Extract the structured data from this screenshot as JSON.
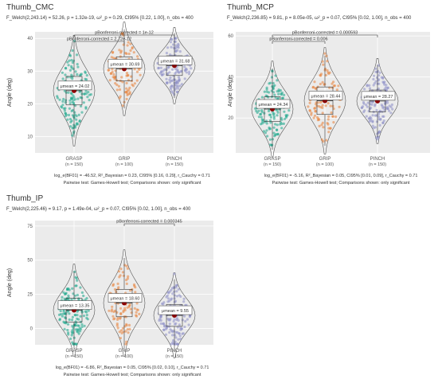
{
  "chart_data": [
    {
      "type": "violin",
      "title": "Thumb_CMC",
      "subtitle": "F_Welch(2,243.14) = 52.26, p = 1.32e-19, ω²_p = 0.29, CI95% [0.22, 1.00], n_obs = 400",
      "ylabel": "Angle (deg)",
      "ylim": [
        5,
        42
      ],
      "yticks": [
        "10",
        "20",
        "30",
        "40"
      ],
      "categories": [
        "GRASP",
        "GRIP",
        "PINCH"
      ],
      "ns": [
        "(n = 150)",
        "(n = 100)",
        "(n = 150)"
      ],
      "series": [
        {
          "values": [
            24.02,
            30.69,
            31.68
          ]
        }
      ],
      "mean_labels": [
        "μmean = 24.02",
        "μmean = 30.69",
        "μmean = 31.68"
      ],
      "comparisons": [
        {
          "from": 0,
          "to": 2,
          "label": "pBonferroni-corrected = 1e-12"
        },
        {
          "from": 0,
          "to": 1,
          "label": "pBonferroni-corrected = 2.72e-12"
        }
      ],
      "footer_bayes": "log_e(BF01) = -46.52, R²_Bayesian = 0.23, CI95% [0.16, 0.29], r_Cauchy = 0.71",
      "footer_test": "Pairwise test: Games-Howell test; Comparisons shown: only significant"
    },
    {
      "type": "violin",
      "title": "Thumb_MCP",
      "subtitle": "F_Welch(2,236.85) = 9.81, p = 8.05e-05, ω²_p = 0.07, CI95% [0.02, 1.00], n_obs = 400",
      "ylabel": "Angle (deg)",
      "ylim": [
        3,
        62
      ],
      "yticks": [
        "20",
        "40",
        "60"
      ],
      "categories": [
        "GRASP",
        "GRIP",
        "PINCH"
      ],
      "ns": [
        "(n = 150)",
        "(n = 100)",
        "(n = 150)"
      ],
      "series": [
        {
          "values": [
            24.34,
            28.44,
            28.27
          ]
        }
      ],
      "mean_labels": [
        "μmean = 24.34",
        "μmean = 28.44",
        "μmean = 28.27"
      ],
      "comparisons": [
        {
          "from": 0,
          "to": 2,
          "label": "pBonferroni-corrected = 0.000593"
        },
        {
          "from": 0,
          "to": 1,
          "label": "pBonferroni-corrected = 0.006"
        }
      ],
      "footer_bayes": "log_e(BF01) = -5.16, R²_Bayesian = 0.05, CI95% [0.01, 0.09], r_Cauchy = 0.71",
      "footer_test": "Pairwise test: Games-Howell test; Comparisons shown: only significant"
    },
    {
      "type": "violin",
      "title": "Thumb_IP",
      "subtitle": "F_Welch(2,225.46) = 9.17, p = 1.49e-04, ω²_p = 0.07, CI95% [0.02, 1.00], n_obs = 400",
      "ylabel": "Angle (deg)",
      "ylim": [
        -12,
        79
      ],
      "yticks": [
        "0",
        "25",
        "50",
        "75"
      ],
      "categories": [
        "GRASP",
        "GRIP",
        "PINCH"
      ],
      "ns": [
        "(n = 150)",
        "(n = 100)",
        "(n = 150)"
      ],
      "series": [
        {
          "values": [
            13.35,
            18.6,
            9.55
          ]
        }
      ],
      "mean_labels": [
        "μmean = 13.35",
        "μmean = 18.60",
        "μmean = 9.55"
      ],
      "comparisons": [
        {
          "from": 1,
          "to": 2,
          "label": "pBonferroni-corrected = 0.000345"
        }
      ],
      "footer_bayes": "log_e(BF01) = -6.86, R²_Bayesian = 0.05, CI95% [0.02, 0.10], r_Cauchy = 0.71",
      "footer_test": "Pairwise test: Games-Howell test; Comparisons shown: only significant"
    }
  ],
  "colors": {
    "panel": "#ebebeb",
    "grid": "#ffffff",
    "groups": [
      "#1aa68a",
      "#e8823a",
      "#8c8ec6"
    ],
    "mean": "#8b0000",
    "text": "#333333"
  }
}
